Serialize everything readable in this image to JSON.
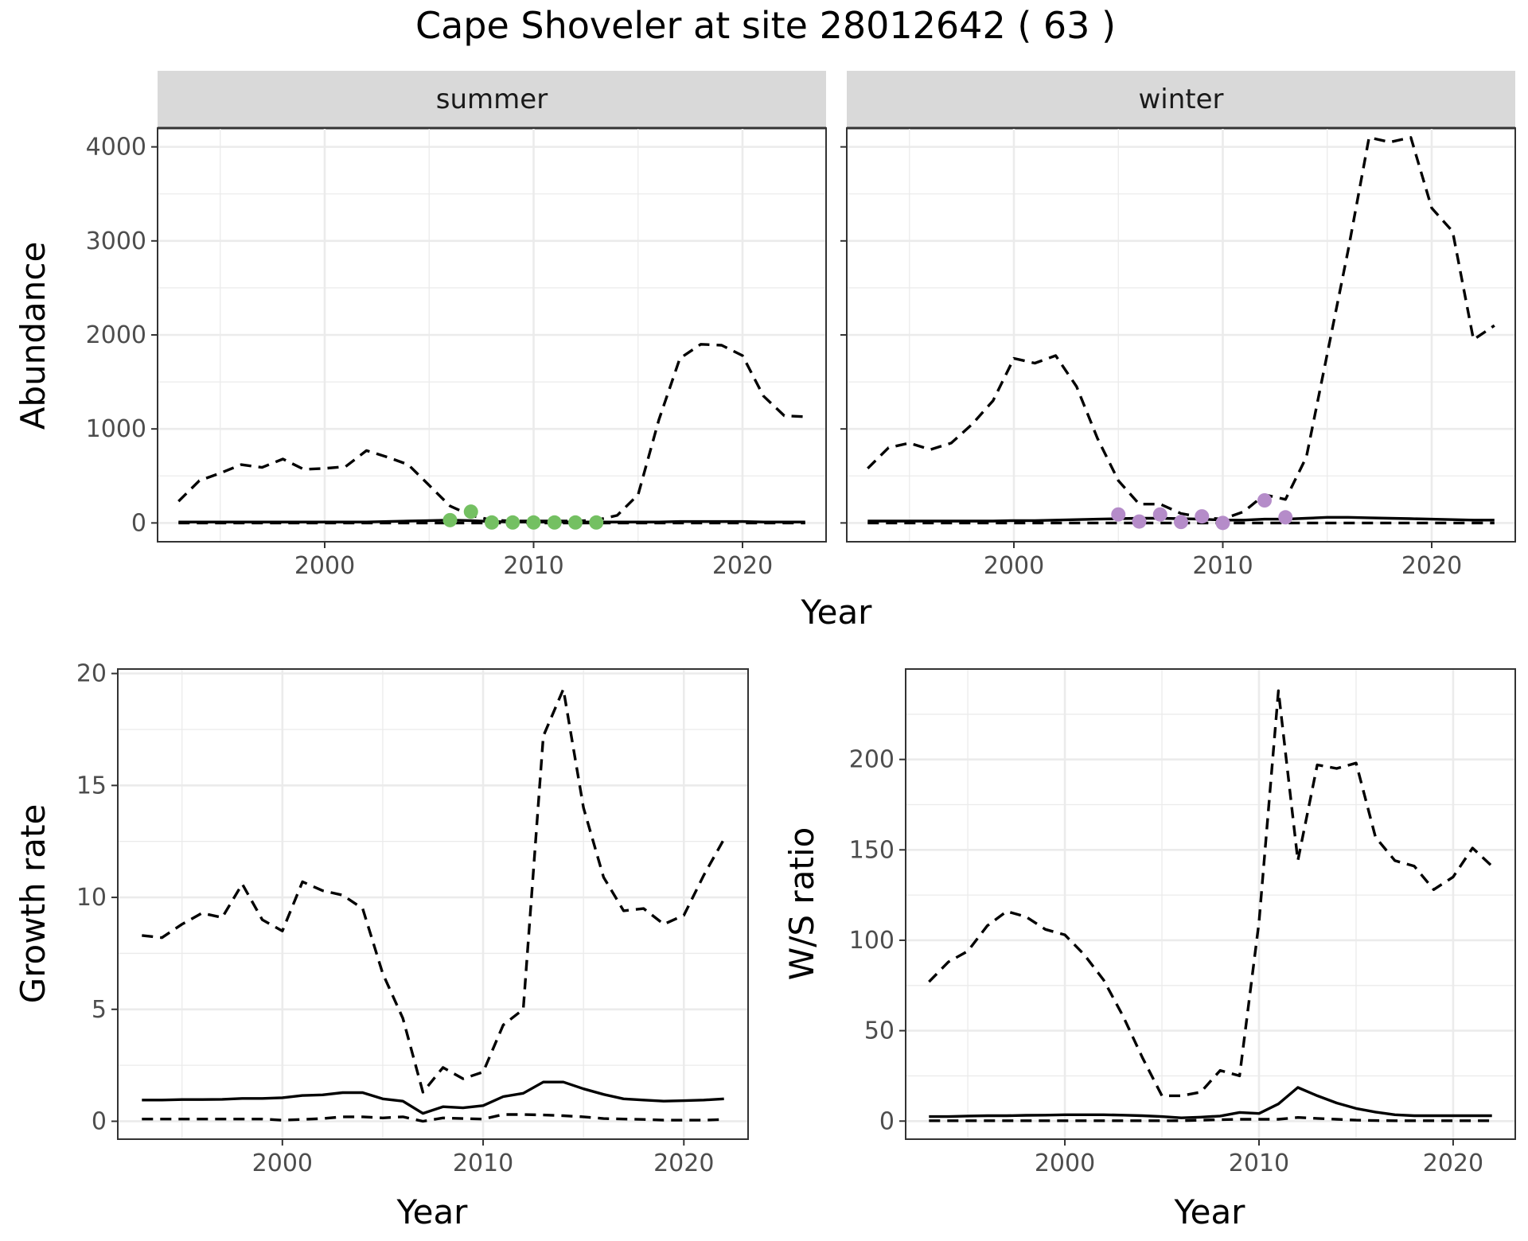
{
  "title": "Cape Shoveler at site 28012642 ( 63 )",
  "colors": {
    "summer_points": "#74c062",
    "winter_points": "#b58cc9",
    "strip_bg": "#d9d9d9",
    "lines": "#000000"
  },
  "chart_data": [
    {
      "type": "line",
      "panel": "summer",
      "strip": "summer",
      "xlabel": "Year",
      "ylabel": "Abundance",
      "xlim": [
        1992,
        2024
      ],
      "ylim": [
        -200,
        4200
      ],
      "xticks": [
        2000,
        2010,
        2020
      ],
      "yticks": [
        0,
        1000,
        2000,
        3000,
        4000
      ],
      "x": [
        1993,
        1994,
        1995,
        1996,
        1997,
        1998,
        1999,
        2000,
        2001,
        2002,
        2003,
        2004,
        2005,
        2006,
        2007,
        2008,
        2009,
        2010,
        2011,
        2012,
        2013,
        2014,
        2015,
        2016,
        2017,
        2018,
        2019,
        2020,
        2021,
        2022,
        2023
      ],
      "series": [
        {
          "style": "dashed",
          "values": [
            230,
            450,
            530,
            620,
            590,
            680,
            570,
            580,
            600,
            770,
            700,
            620,
            400,
            180,
            80,
            30,
            20,
            20,
            20,
            20,
            30,
            80,
            300,
            1100,
            1750,
            1900,
            1890,
            1780,
            1350,
            1140,
            1130
          ]
        },
        {
          "style": "solid",
          "values": [
            10,
            10,
            10,
            10,
            10,
            10,
            10,
            10,
            10,
            10,
            15,
            20,
            25,
            30,
            25,
            15,
            10,
            10,
            10,
            10,
            10,
            10,
            10,
            10,
            15,
            15,
            15,
            15,
            10,
            10,
            10
          ]
        },
        {
          "style": "dashed",
          "values": [
            0,
            0,
            0,
            0,
            0,
            0,
            0,
            0,
            0,
            0,
            0,
            0,
            0,
            0,
            0,
            0,
            0,
            0,
            0,
            0,
            0,
            0,
            0,
            0,
            0,
            0,
            0,
            0,
            0,
            0,
            0
          ]
        }
      ],
      "points": {
        "x": [
          2006,
          2007,
          2008,
          2009,
          2010,
          2011,
          2012,
          2013
        ],
        "y": [
          30,
          120,
          5,
          5,
          5,
          5,
          5,
          5
        ]
      }
    },
    {
      "type": "line",
      "panel": "winter",
      "strip": "winter",
      "xlabel": "Year",
      "ylabel": "Abundance",
      "xlim": [
        1992,
        2024
      ],
      "ylim": [
        -200,
        4200
      ],
      "xticks": [
        2000,
        2010,
        2020
      ],
      "yticks": [
        0,
        1000,
        2000,
        3000,
        4000
      ],
      "x": [
        1993,
        1994,
        1995,
        1996,
        1997,
        1998,
        1999,
        2000,
        2001,
        2002,
        2003,
        2004,
        2005,
        2006,
        2007,
        2008,
        2009,
        2010,
        2011,
        2012,
        2013,
        2014,
        2015,
        2016,
        2017,
        2018,
        2019,
        2020,
        2021,
        2022,
        2023
      ],
      "series": [
        {
          "style": "dashed",
          "values": [
            580,
            800,
            850,
            780,
            850,
            1050,
            1300,
            1750,
            1700,
            1780,
            1450,
            900,
            450,
            200,
            200,
            100,
            60,
            40,
            120,
            300,
            250,
            700,
            1800,
            2900,
            4100,
            4050,
            4100,
            3350,
            3100,
            1950,
            2100
          ]
        },
        {
          "style": "solid",
          "values": [
            20,
            20,
            20,
            20,
            20,
            20,
            20,
            25,
            25,
            30,
            35,
            40,
            45,
            50,
            50,
            45,
            40,
            30,
            30,
            40,
            40,
            50,
            60,
            60,
            55,
            50,
            45,
            40,
            35,
            30,
            30
          ]
        },
        {
          "style": "dashed",
          "values": [
            0,
            0,
            0,
            0,
            0,
            0,
            0,
            0,
            0,
            0,
            0,
            0,
            0,
            0,
            0,
            0,
            0,
            0,
            0,
            0,
            0,
            0,
            0,
            0,
            0,
            0,
            0,
            0,
            0,
            0,
            0
          ]
        }
      ],
      "points": {
        "x": [
          2005,
          2006,
          2007,
          2008,
          2009,
          2010,
          2012,
          2013
        ],
        "y": [
          90,
          15,
          90,
          10,
          70,
          0,
          240,
          60
        ]
      }
    },
    {
      "type": "line",
      "panel": "growth",
      "xlabel": "Year",
      "ylabel": "Growth rate",
      "xlim": [
        1991.8,
        2023.2
      ],
      "ylim": [
        -0.8,
        20.2
      ],
      "xticks": [
        2000,
        2010,
        2020
      ],
      "yticks": [
        0,
        5,
        10,
        15,
        20
      ],
      "x": [
        1993,
        1994,
        1995,
        1996,
        1997,
        1998,
        1999,
        2000,
        2001,
        2002,
        2003,
        2004,
        2005,
        2006,
        2007,
        2008,
        2009,
        2010,
        2011,
        2012,
        2013,
        2014,
        2015,
        2016,
        2017,
        2018,
        2019,
        2020,
        2021,
        2022
      ],
      "series": [
        {
          "style": "dashed",
          "values": [
            8.3,
            8.2,
            8.8,
            9.3,
            9.1,
            10.6,
            9.0,
            8.5,
            10.7,
            10.3,
            10.1,
            9.5,
            6.6,
            4.6,
            1.3,
            2.4,
            1.9,
            2.2,
            4.3,
            5.0,
            17.2,
            19.3,
            14.0,
            10.9,
            9.4,
            9.5,
            8.8,
            9.2,
            11.0,
            12.6
          ]
        },
        {
          "style": "solid",
          "values": [
            0.95,
            0.95,
            0.97,
            0.97,
            0.98,
            1.02,
            1.02,
            1.05,
            1.15,
            1.18,
            1.28,
            1.28,
            1.0,
            0.9,
            0.35,
            0.65,
            0.6,
            0.7,
            1.1,
            1.25,
            1.75,
            1.75,
            1.45,
            1.2,
            1.0,
            0.95,
            0.9,
            0.92,
            0.95,
            1.0
          ]
        },
        {
          "style": "dashed",
          "values": [
            0.1,
            0.1,
            0.1,
            0.1,
            0.1,
            0.1,
            0.1,
            0.05,
            0.08,
            0.12,
            0.2,
            0.2,
            0.15,
            0.2,
            0.0,
            0.15,
            0.12,
            0.1,
            0.3,
            0.3,
            0.28,
            0.25,
            0.2,
            0.12,
            0.1,
            0.08,
            0.05,
            0.05,
            0.05,
            0.08
          ]
        }
      ]
    },
    {
      "type": "line",
      "panel": "ws_ratio",
      "xlabel": "Year",
      "ylabel": "W/S ratio",
      "xlim": [
        1991.8,
        2023.2
      ],
      "ylim": [
        -10,
        250
      ],
      "xticks": [
        2000,
        2010,
        2020
      ],
      "yticks": [
        0,
        50,
        100,
        150,
        200
      ],
      "x": [
        1993,
        1994,
        1995,
        1996,
        1997,
        1998,
        1999,
        2000,
        2001,
        2002,
        2003,
        2004,
        2005,
        2006,
        2007,
        2008,
        2009,
        2010,
        2011,
        2012,
        2013,
        2014,
        2015,
        2016,
        2017,
        2018,
        2019,
        2020,
        2021,
        2022
      ],
      "series": [
        {
          "style": "dashed",
          "values": [
            77,
            88,
            94,
            108,
            116,
            113,
            106,
            103,
            92,
            78,
            58,
            35,
            14,
            14,
            16,
            28,
            25,
            110,
            238,
            144,
            197,
            195,
            198,
            157,
            144,
            141,
            128,
            135,
            151,
            141
          ]
        },
        {
          "style": "solid",
          "values": [
            2.5,
            2.5,
            2.8,
            3.0,
            3.0,
            3.2,
            3.3,
            3.5,
            3.5,
            3.5,
            3.3,
            3.0,
            2.5,
            1.8,
            2.2,
            2.8,
            4.8,
            4.2,
            9.5,
            18.6,
            14.0,
            10.0,
            7.0,
            5.0,
            3.5,
            3.0,
            3.0,
            3.0,
            3.0,
            3.0
          ]
        },
        {
          "style": "dashed",
          "values": [
            0.2,
            0.2,
            0.2,
            0.2,
            0.2,
            0.2,
            0.2,
            0.2,
            0.2,
            0.2,
            0.2,
            0.2,
            0.2,
            0.2,
            0.5,
            0.8,
            1.0,
            1.0,
            1.0,
            2.0,
            1.5,
            1.0,
            0.5,
            0.3,
            0.2,
            0.2,
            0.2,
            0.2,
            0.2,
            0.2
          ]
        }
      ]
    }
  ]
}
